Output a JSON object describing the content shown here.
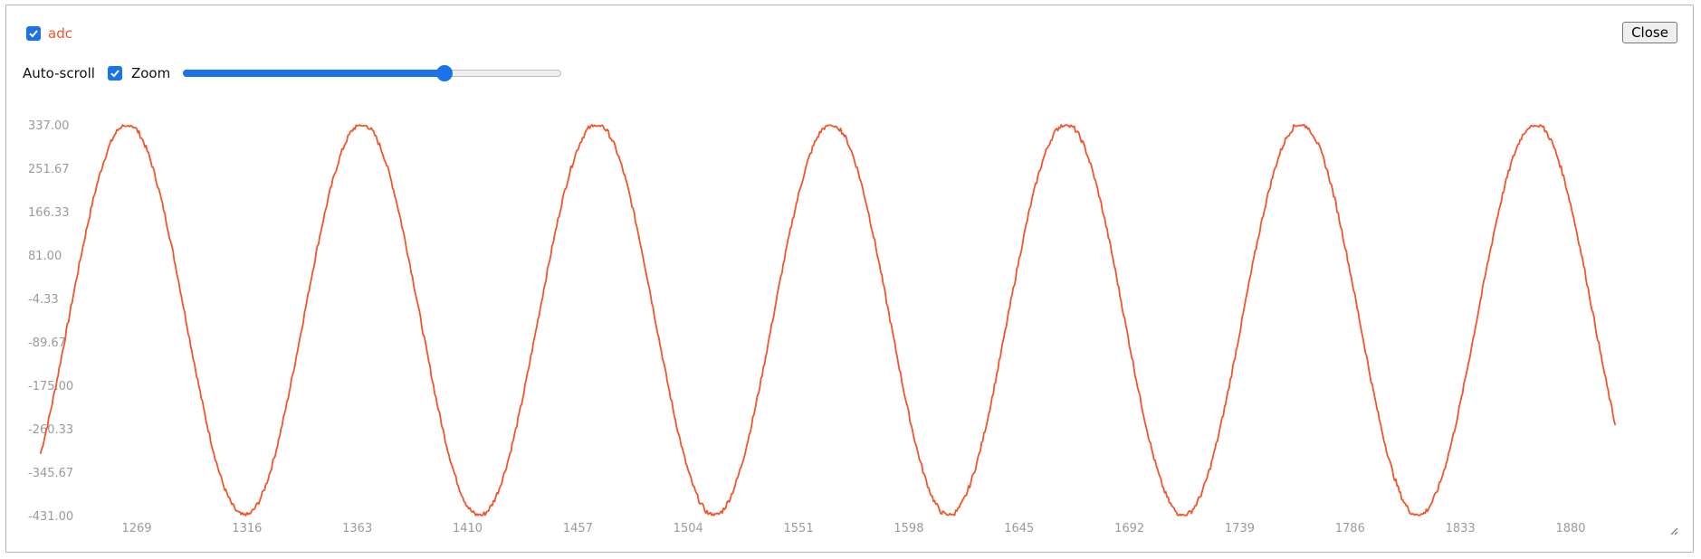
{
  "series_toggle": {
    "label": "adc",
    "checked": true,
    "color": "#f0552b"
  },
  "controls": {
    "autoscroll_label": "Auto-scroll",
    "autoscroll_checked": true,
    "zoom_label": "Zoom",
    "zoom_level": 0.69
  },
  "close_button": {
    "label": "Close"
  },
  "icons": {
    "checkbox": "checkmark-icon",
    "resize": "resize-grip-icon"
  },
  "chart_data": {
    "type": "line",
    "series": [
      {
        "name": "adc",
        "color": "#f0552b",
        "wave": {
          "offset": -46,
          "amplitude": 385,
          "period": 100,
          "peak_x": 1265,
          "x_start": 1228,
          "x_end": 1899
        }
      }
    ],
    "x_ticks": [
      "1269",
      "1316",
      "1363",
      "1410",
      "1457",
      "1504",
      "1551",
      "1598",
      "1645",
      "1692",
      "1739",
      "1786",
      "1833",
      "1880"
    ],
    "y_ticks": [
      "337.00",
      "251.67",
      "166.33",
      "81.00",
      "-4.33",
      "-89.67",
      "-175.00",
      "-260.33",
      "-345.67",
      "-431.00"
    ],
    "xlim": [
      1228,
      1900
    ],
    "ylim": [
      -431,
      337
    ],
    "grid": false
  }
}
